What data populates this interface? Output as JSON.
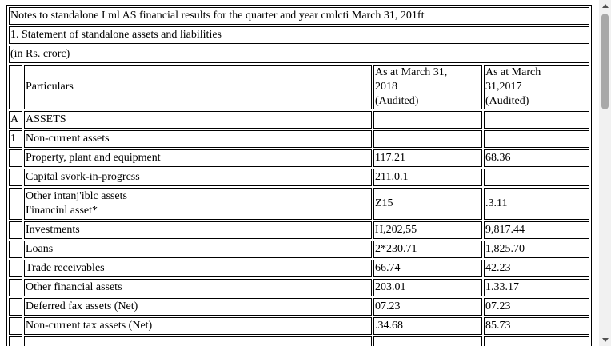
{
  "document": {
    "title": "Notes to standalone I ml AS financial results for the quarter and year cmlcti March 31, 201ft",
    "subtitle": "1. Statement of standalone assets and liabilities",
    "unit": "(in Rs. crorc)"
  },
  "table": {
    "header": {
      "particulars": "Particulars",
      "col1_line1": "As at March 31,",
      "col1_line2": "2018",
      "col1_line3": "(Audited)",
      "col2_line1": "As at March",
      "col2_line2": "31,2017",
      "col2_line3": "(Audited)"
    },
    "rows": [
      {
        "code": "A",
        "label": "ASSETS",
        "v1": "",
        "v2": ""
      },
      {
        "code": "1",
        "label": "Non-current assets",
        "v1": "",
        "v2": ""
      },
      {
        "code": "",
        "label": "Property, plant and equipment",
        "v1": "117.21",
        "v2": "68.36"
      },
      {
        "code": "",
        "label": "Capital svork-in-progrcss",
        "v1": "211.0.1",
        "v2": ""
      },
      {
        "code": "",
        "label": "Other intanj'iblc assets",
        "label2": "I'inancinl asset*",
        "v1": "Z15",
        "v2": ".3.11"
      },
      {
        "code": "",
        "label": "Investments",
        "v1": "H,202,55",
        "v2": "9,817.44"
      },
      {
        "code": "",
        "label": "Loans",
        "v1": "2*230.71",
        "v2": "1,825.70"
      },
      {
        "code": "",
        "label": "Trade receivables",
        "v1": "66.74",
        "v2": "42.23"
      },
      {
        "code": "",
        "label": "Other financial assets",
        "v1": "203.01",
        "v2": "1.33.17"
      },
      {
        "code": "",
        "label": "Deferred fax assets (Net)",
        "v1": "07.23",
        "v2": "07.23"
      },
      {
        "code": "",
        "label": "Non-current tax assets (Net)",
        "v1": ".34.68",
        "v2": "85.73"
      }
    ]
  }
}
